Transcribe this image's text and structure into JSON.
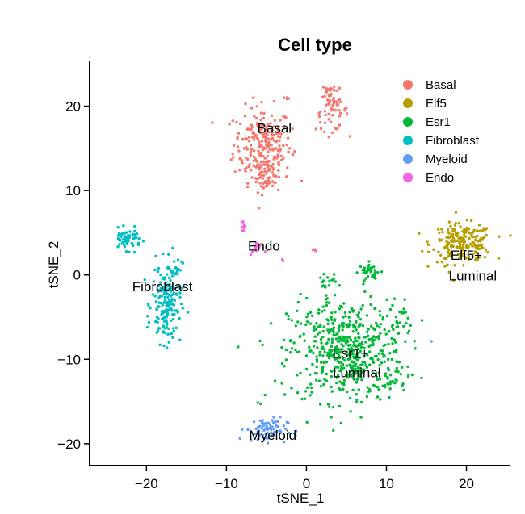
{
  "chart_data": {
    "type": "scatter",
    "title": "Cell type",
    "xlabel": "tSNE_1",
    "ylabel": "tSNE_2",
    "xlim": [
      -27,
      25.5
    ],
    "ylim": [
      -22.5,
      25.5
    ],
    "xticks": [
      -20,
      -10,
      0,
      10,
      20
    ],
    "yticks": [
      -20,
      -10,
      0,
      10,
      20
    ],
    "xtick_labels": [
      "−20",
      "−10",
      "0",
      "10",
      "20"
    ],
    "ytick_labels": [
      "−20",
      "−10",
      "0",
      "10",
      "20"
    ],
    "grid": false,
    "legend_position": "top-right",
    "series": [
      {
        "name": "Basal",
        "color": "#F8766D",
        "clusters": [
          {
            "cx": -5.5,
            "cy": 15.5,
            "sx": 1.8,
            "sy": 2.2,
            "n": 220
          },
          {
            "cx": -5.0,
            "cy": 12.0,
            "sx": 0.9,
            "sy": 1.2,
            "n": 60
          },
          {
            "cx": 3.2,
            "cy": 19.5,
            "sx": 1.0,
            "sy": 1.2,
            "n": 60
          },
          {
            "cx": 2.7,
            "cy": 22.0,
            "sx": 0.4,
            "sy": 0.3,
            "n": 14
          },
          {
            "cx": -2.4,
            "cy": 21.0,
            "sx": 0.2,
            "sy": 0.15,
            "n": 4
          },
          {
            "cx": 1.0,
            "cy": 3.0,
            "sx": 0.1,
            "sy": 0.2,
            "n": 3
          }
        ]
      },
      {
        "name": "Elf5",
        "color": "#B79F00",
        "clusters": [
          {
            "cx": 19.5,
            "cy": 3.8,
            "sx": 1.9,
            "sy": 1.1,
            "n": 200
          },
          {
            "cx": 17.6,
            "cy": 1.0,
            "sx": 0.4,
            "sy": 0.3,
            "n": 5
          }
        ]
      },
      {
        "name": "Esr1",
        "color": "#00BA38",
        "clusters": [
          {
            "cx": 5.0,
            "cy": -9.0,
            "sx": 3.6,
            "sy": 3.0,
            "n": 550
          },
          {
            "cx": 8.0,
            "cy": 0.4,
            "sx": 0.7,
            "sy": 0.5,
            "n": 35
          },
          {
            "cx": 2.5,
            "cy": -1.0,
            "sx": 0.6,
            "sy": 0.8,
            "n": 20
          },
          {
            "cx": 11.5,
            "cy": -5.5,
            "sx": 0.6,
            "sy": 1.0,
            "n": 20
          },
          {
            "cx": 11.0,
            "cy": -13.0,
            "sx": 0.8,
            "sy": 0.4,
            "n": 15
          },
          {
            "cx": -6.0,
            "cy": -15.2,
            "sx": 0.1,
            "sy": 0.1,
            "n": 2
          }
        ]
      },
      {
        "name": "Fibroblast",
        "color": "#00BFC4",
        "clusters": [
          {
            "cx": -22.5,
            "cy": 4.2,
            "sx": 0.9,
            "sy": 0.6,
            "n": 60
          },
          {
            "cx": -17.5,
            "cy": -3.5,
            "sx": 0.9,
            "sy": 2.3,
            "n": 170
          },
          {
            "cx": -16.5,
            "cy": 0.8,
            "sx": 0.5,
            "sy": 0.5,
            "n": 20
          }
        ]
      },
      {
        "name": "Myeloid",
        "color": "#619CFF",
        "clusters": [
          {
            "cx": -5.0,
            "cy": -18.3,
            "sx": 1.3,
            "sy": 0.7,
            "n": 70
          },
          {
            "cx": 15.5,
            "cy": -8.0,
            "sx": 0.1,
            "sy": 0.1,
            "n": 1
          }
        ]
      },
      {
        "name": "Endo",
        "color": "#F564E3",
        "clusters": [
          {
            "cx": -8.0,
            "cy": 5.6,
            "sx": 0.12,
            "sy": 0.4,
            "n": 8
          },
          {
            "cx": -6.2,
            "cy": 3.0,
            "sx": 0.4,
            "sy": 0.6,
            "n": 10
          },
          {
            "cx": -3.0,
            "cy": 1.7,
            "sx": 0.1,
            "sy": 0.1,
            "n": 2
          },
          {
            "cx": 1.0,
            "cy": 2.8,
            "sx": 0.1,
            "sy": 0.1,
            "n": 1
          }
        ]
      }
    ],
    "annotations": [
      {
        "text": "Basal",
        "x": -4.0,
        "y": 17.3
      },
      {
        "text": "Endo",
        "x": -5.3,
        "y": 3.3
      },
      {
        "text": "Fibroblast",
        "x": -18.0,
        "y": -1.5
      },
      {
        "text": "Elf5+",
        "x": 20.0,
        "y": 2.2
      },
      {
        "text": "Luminal",
        "x": 20.8,
        "y": -0.2
      },
      {
        "text": "Esr1+",
        "x": 5.5,
        "y": -9.4
      },
      {
        "text": "Luminal",
        "x": 6.3,
        "y": -11.7
      },
      {
        "text": "Myeloid",
        "x": -4.2,
        "y": -19.1
      }
    ]
  }
}
